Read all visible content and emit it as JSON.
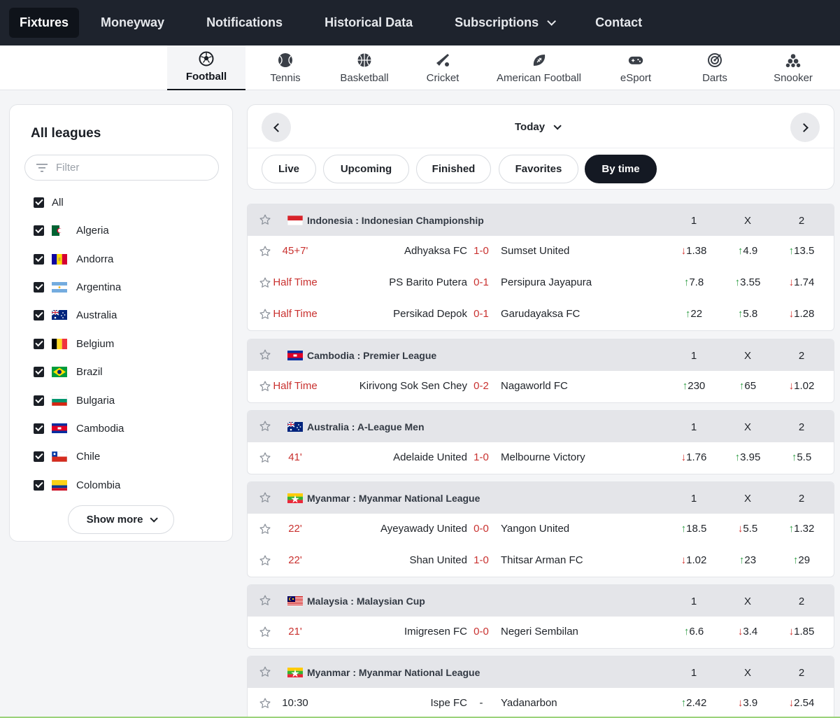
{
  "topnav": {
    "items": [
      {
        "label": "Fixtures",
        "active": true
      },
      {
        "label": "Moneyway"
      },
      {
        "label": "Notifications"
      },
      {
        "label": "Historical Data"
      },
      {
        "label": "Subscriptions",
        "dropdown": true
      },
      {
        "label": "Contact"
      }
    ]
  },
  "sports": [
    {
      "label": "Football",
      "icon": "football-icon",
      "active": true
    },
    {
      "label": "Tennis",
      "icon": "tennis-ball-icon"
    },
    {
      "label": "Basketball",
      "icon": "basketball-icon"
    },
    {
      "label": "Cricket",
      "icon": "cricket-icon"
    },
    {
      "label": "American Football",
      "icon": "american-football-icon"
    },
    {
      "label": "eSport",
      "icon": "gamepad-icon"
    },
    {
      "label": "Darts",
      "icon": "dartboard-icon"
    },
    {
      "label": "Snooker",
      "icon": "snooker-balls-icon"
    }
  ],
  "leagues_panel": {
    "title": "All leagues",
    "filter_placeholder": "Filter",
    "items": [
      {
        "label": "All",
        "checked": true
      },
      {
        "label": "Algeria",
        "checked": true,
        "flag": "algeria"
      },
      {
        "label": "Andorra",
        "checked": true,
        "flag": "andorra"
      },
      {
        "label": "Argentina",
        "checked": true,
        "flag": "argentina"
      },
      {
        "label": "Australia",
        "checked": true,
        "flag": "australia"
      },
      {
        "label": "Belgium",
        "checked": true,
        "flag": "belgium"
      },
      {
        "label": "Brazil",
        "checked": true,
        "flag": "brazil"
      },
      {
        "label": "Bulgaria",
        "checked": true,
        "flag": "bulgaria"
      },
      {
        "label": "Cambodia",
        "checked": true,
        "flag": "cambodia"
      },
      {
        "label": "Chile",
        "checked": true,
        "flag": "chile"
      },
      {
        "label": "Colombia",
        "checked": true,
        "flag": "colombia"
      }
    ],
    "show_more": "Show more"
  },
  "date_panel": {
    "date_label": "Today",
    "filters": [
      {
        "label": "Live"
      },
      {
        "label": "Upcoming"
      },
      {
        "label": "Finished"
      },
      {
        "label": "Favorites"
      },
      {
        "label": "By time",
        "active": true
      }
    ]
  },
  "columns": [
    "1",
    "X",
    "2"
  ],
  "league_blocks": [
    {
      "name": "Indonesia : Indonesian Championship",
      "flag": "indonesia",
      "matches": [
        {
          "time": "45+7'",
          "home": "Adhyaksa FC",
          "score": "1-0",
          "away": "Sumset United",
          "odds": [
            {
              "v": "1.38",
              "dir": "down"
            },
            {
              "v": "4.9",
              "dir": "up"
            },
            {
              "v": "13.5",
              "dir": "up"
            }
          ]
        },
        {
          "time": "Half Time",
          "home": "PS Barito Putera",
          "score": "0-1",
          "away": "Persipura Jayapura",
          "odds": [
            {
              "v": "7.8",
              "dir": "up"
            },
            {
              "v": "3.55",
              "dir": "up"
            },
            {
              "v": "1.74",
              "dir": "down"
            }
          ]
        },
        {
          "time": "Half Time",
          "home": "Persikad Depok",
          "score": "0-1",
          "away": "Garudayaksa FC",
          "odds": [
            {
              "v": "22",
              "dir": "up"
            },
            {
              "v": "5.8",
              "dir": "up"
            },
            {
              "v": "1.28",
              "dir": "down"
            }
          ]
        }
      ]
    },
    {
      "name": "Cambodia : Premier League",
      "flag": "cambodia",
      "matches": [
        {
          "time": "Half Time",
          "home": "Kirivong Sok Sen Chey",
          "score": "0-2",
          "away": "Nagaworld FC",
          "odds": [
            {
              "v": "230",
              "dir": "up"
            },
            {
              "v": "65",
              "dir": "up"
            },
            {
              "v": "1.02",
              "dir": "down"
            }
          ]
        }
      ]
    },
    {
      "name": "Australia : A-League Men",
      "flag": "australia",
      "matches": [
        {
          "time": "41'",
          "home": "Adelaide United",
          "score": "1-0",
          "away": "Melbourne Victory",
          "odds": [
            {
              "v": "1.76",
              "dir": "down"
            },
            {
              "v": "3.95",
              "dir": "up"
            },
            {
              "v": "5.5",
              "dir": "up"
            }
          ]
        }
      ]
    },
    {
      "name": "Myanmar : Myanmar National League",
      "flag": "myanmar",
      "matches": [
        {
          "time": "22'",
          "home": "Ayeyawady United",
          "score": "0-0",
          "away": "Yangon United",
          "odds": [
            {
              "v": "18.5",
              "dir": "up"
            },
            {
              "v": "5.5",
              "dir": "down"
            },
            {
              "v": "1.32",
              "dir": "up"
            }
          ]
        },
        {
          "time": "22'",
          "home": "Shan United",
          "score": "1-0",
          "away": "Thitsar Arman FC",
          "odds": [
            {
              "v": "1.02",
              "dir": "down"
            },
            {
              "v": "23",
              "dir": "up"
            },
            {
              "v": "29",
              "dir": "up"
            }
          ]
        }
      ]
    },
    {
      "name": "Malaysia : Malaysian Cup",
      "flag": "malaysia",
      "matches": [
        {
          "time": "21'",
          "home": "Imigresen FC",
          "score": "0-0",
          "away": "Negeri Sembilan",
          "odds": [
            {
              "v": "6.6",
              "dir": "up"
            },
            {
              "v": "3.4",
              "dir": "down"
            },
            {
              "v": "1.85",
              "dir": "down"
            }
          ]
        }
      ]
    },
    {
      "name": "Myanmar : Myanmar National League",
      "flag": "myanmar",
      "matches": [
        {
          "time": "10:30",
          "home": "Ispe FC",
          "score": "-",
          "away": "Yadanarbon",
          "upcoming": true,
          "odds": [
            {
              "v": "2.42",
              "dir": "up"
            },
            {
              "v": "3.9",
              "dir": "down"
            },
            {
              "v": "2.54",
              "dir": "down"
            }
          ]
        }
      ]
    }
  ],
  "colors": {
    "nav_bg": "#1e232d",
    "live_red": "#c9312f",
    "odds_up": "#2f9e44",
    "odds_down": "#d6332f",
    "league_header_bg": "#e4e5e9"
  }
}
